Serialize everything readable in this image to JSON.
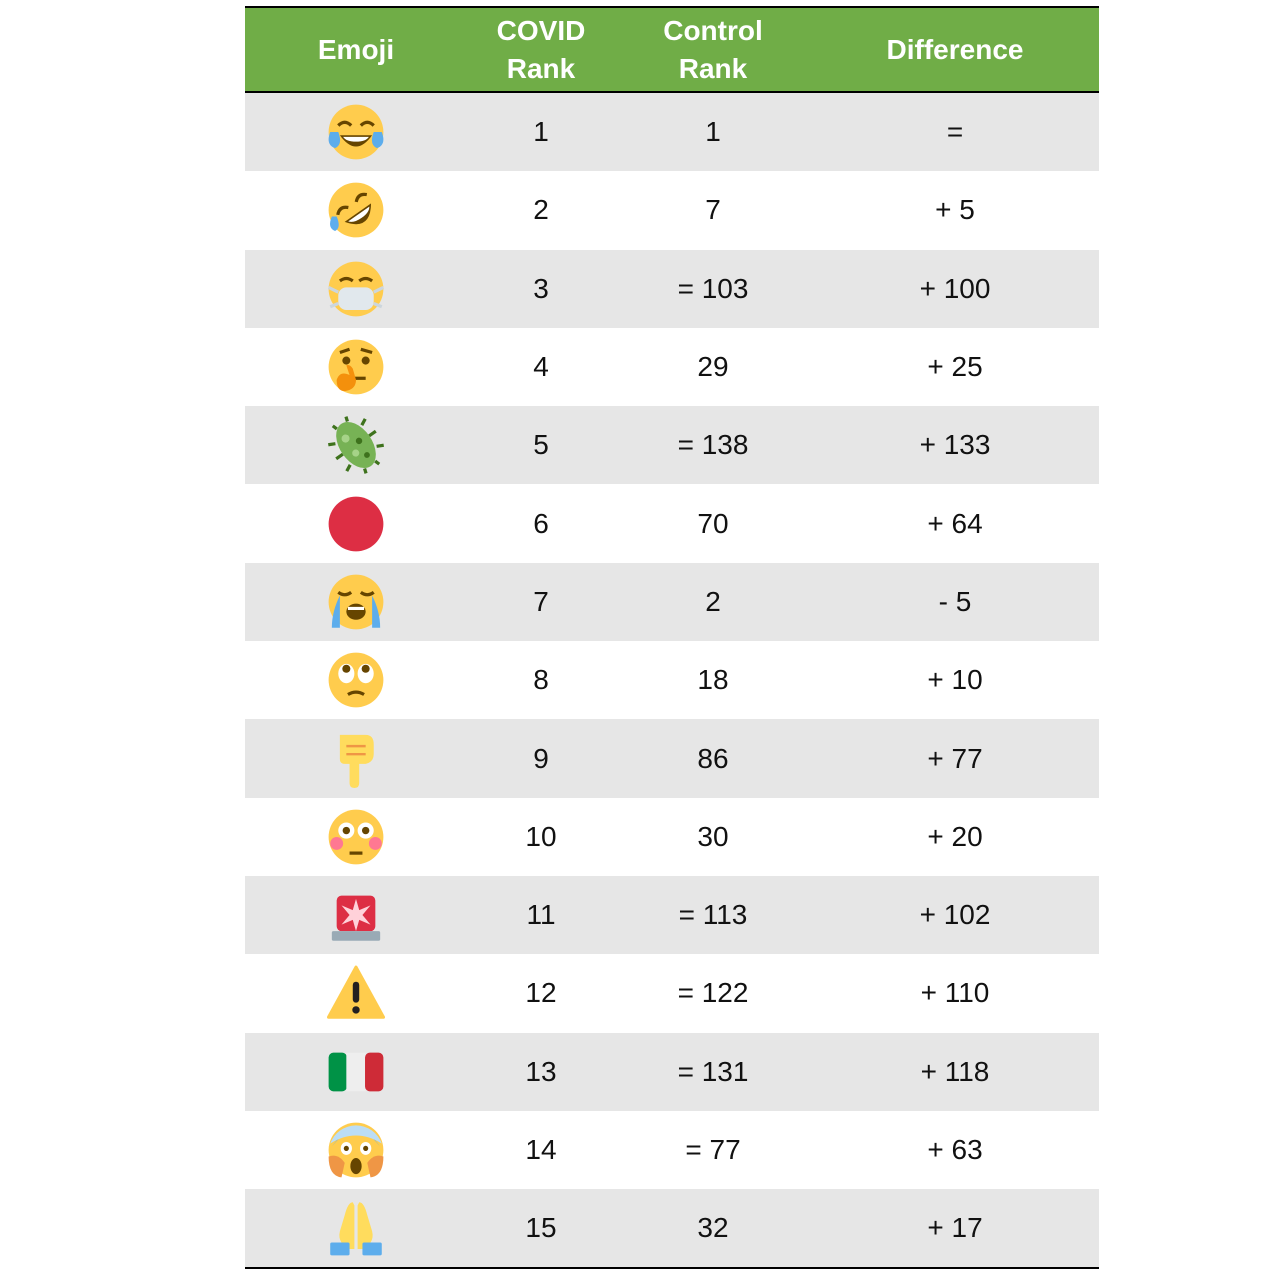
{
  "table": {
    "headers": {
      "emoji": "Emoji",
      "covid_rank": "COVID\nRank",
      "control_rank": "Control\nRank",
      "difference": "Difference"
    },
    "rows": [
      {
        "emoji": "face-with-tears-of-joy-icon",
        "covid": "1",
        "control": "1",
        "diff": "="
      },
      {
        "emoji": "rolling-on-floor-laughing-icon",
        "covid": "2",
        "control": "7",
        "diff": "+ 5"
      },
      {
        "emoji": "face-with-medical-mask-icon",
        "covid": "3",
        "control": "= 103",
        "diff": "+ 100"
      },
      {
        "emoji": "thinking-face-icon",
        "covid": "4",
        "control": "29",
        "diff": "+ 25"
      },
      {
        "emoji": "microbe-icon",
        "covid": "5",
        "control": "= 138",
        "diff": "+ 133"
      },
      {
        "emoji": "red-circle-icon",
        "covid": "6",
        "control": "70",
        "diff": "+ 64"
      },
      {
        "emoji": "loudly-crying-face-icon",
        "covid": "7",
        "control": "2",
        "diff": "- 5"
      },
      {
        "emoji": "face-with-rolling-eyes-icon",
        "covid": "8",
        "control": "18",
        "diff": "+ 10"
      },
      {
        "emoji": "backhand-index-pointing-down-icon",
        "covid": "9",
        "control": "86",
        "diff": "+ 77"
      },
      {
        "emoji": "flushed-face-icon",
        "covid": "10",
        "control": "30",
        "diff": "+ 20"
      },
      {
        "emoji": "police-car-light-icon",
        "covid": "11",
        "control": "= 113",
        "diff": "+ 102"
      },
      {
        "emoji": "warning-icon",
        "covid": "12",
        "control": "= 122",
        "diff": "+ 110"
      },
      {
        "emoji": "flag-italy-icon",
        "covid": "13",
        "control": "= 131",
        "diff": "+ 118"
      },
      {
        "emoji": "face-screaming-in-fear-icon",
        "covid": "14",
        "control": "= 77",
        "diff": "+ 63"
      },
      {
        "emoji": "folded-hands-icon",
        "covid": "15",
        "control": "32",
        "diff": "+ 17"
      }
    ]
  },
  "colors": {
    "header_bg": "#70ad47",
    "header_text": "#ffffff",
    "row_shaded": "#e6e6e6",
    "row_plain": "#ffffff"
  }
}
